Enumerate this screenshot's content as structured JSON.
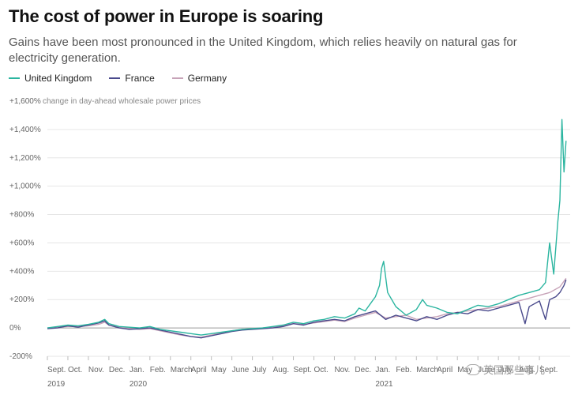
{
  "header": {
    "title": "The cost of power in Europe is soaring",
    "subtitle": "Gains have been most pronounced in the United Kingdom, which relies heavily on natural gas for electricity generation."
  },
  "watermark": {
    "text": "英国那些事儿"
  },
  "chart_data": {
    "type": "line",
    "title": "The cost of power in Europe is soaring",
    "ylabel": "change in day-ahead wholesale power prices",
    "ylim": [
      -200,
      1600
    ],
    "yticks": [
      -200,
      0,
      200,
      400,
      600,
      800,
      1000,
      1200,
      1400,
      1600
    ],
    "ytick_labels": [
      "-200%",
      "0%",
      "+200%",
      "+400%",
      "+600%",
      "+800%",
      "+1,000%",
      "+1,200%",
      "+1,400%",
      "+1,600%"
    ],
    "xlim": [
      0,
      25.5
    ],
    "x_months": [
      "Sept.",
      "Oct.",
      "Nov.",
      "Dec.",
      "Jan.",
      "Feb.",
      "March",
      "April",
      "May",
      "June",
      "July",
      "Aug.",
      "Sept.",
      "Oct.",
      "Nov.",
      "Dec.",
      "Jan.",
      "Feb.",
      "March",
      "April",
      "May",
      "June",
      "July",
      "Aug.",
      "Sept."
    ],
    "x_years": [
      {
        "label": "2019",
        "month_index": 0
      },
      {
        "label": "2020",
        "month_index": 4
      },
      {
        "label": "2021",
        "month_index": 16
      }
    ],
    "colors": {
      "United Kingdom": "#2bb5a0",
      "France": "#4a4a8c",
      "Germany": "#c7a3b8"
    },
    "series": [
      {
        "name": "United Kingdom",
        "x": [
          0,
          0.5,
          1,
          1.5,
          2,
          2.5,
          2.8,
          3,
          3.5,
          4,
          4.5,
          5,
          5.5,
          6,
          6.5,
          7,
          7.5,
          8,
          8.5,
          9,
          9.5,
          10,
          10.5,
          11,
          11.5,
          12,
          12.5,
          13,
          13.5,
          14,
          14.5,
          15,
          15.2,
          15.5,
          15.8,
          16,
          16.2,
          16.3,
          16.4,
          16.6,
          17,
          17.5,
          18,
          18.3,
          18.5,
          19,
          19.5,
          20,
          20.5,
          21,
          21.5,
          22,
          22.5,
          23,
          23.5,
          24,
          24.3,
          24.5,
          24.7,
          24.9,
          25,
          25.1,
          25.2,
          25.3
        ],
        "values": [
          0,
          10,
          20,
          15,
          25,
          40,
          60,
          30,
          10,
          5,
          0,
          10,
          -10,
          -20,
          -30,
          -40,
          -50,
          -40,
          -30,
          -20,
          -10,
          -5,
          0,
          10,
          20,
          40,
          30,
          50,
          60,
          80,
          70,
          100,
          140,
          120,
          180,
          220,
          300,
          420,
          470,
          250,
          150,
          90,
          130,
          200,
          160,
          140,
          110,
          100,
          130,
          160,
          150,
          170,
          200,
          230,
          250,
          270,
          320,
          600,
          380,
          750,
          900,
          1470,
          1100,
          1320
        ]
      },
      {
        "name": "France",
        "x": [
          0,
          0.5,
          1,
          1.5,
          2,
          2.5,
          2.8,
          3,
          3.5,
          4,
          4.5,
          5,
          5.5,
          6,
          6.5,
          7,
          7.5,
          8,
          8.5,
          9,
          9.5,
          10,
          10.5,
          11,
          11.5,
          12,
          12.5,
          13,
          13.5,
          14,
          14.5,
          15,
          15.5,
          16,
          16.5,
          17,
          17.5,
          18,
          18.5,
          19,
          19.5,
          20,
          20.5,
          21,
          21.5,
          22,
          22.5,
          23,
          23.3,
          23.5,
          24,
          24.3,
          24.5,
          24.8,
          25,
          25.2,
          25.3
        ],
        "values": [
          -5,
          0,
          15,
          5,
          20,
          35,
          50,
          20,
          0,
          -10,
          -5,
          0,
          -15,
          -30,
          -45,
          -60,
          -70,
          -55,
          -40,
          -25,
          -15,
          -10,
          -5,
          0,
          10,
          30,
          20,
          40,
          50,
          60,
          50,
          80,
          100,
          120,
          60,
          90,
          70,
          50,
          80,
          60,
          90,
          110,
          100,
          130,
          120,
          140,
          160,
          180,
          30,
          150,
          190,
          60,
          200,
          220,
          250,
          300,
          340
        ]
      },
      {
        "name": "Germany",
        "x": [
          0,
          0.5,
          1,
          1.5,
          2,
          2.5,
          2.8,
          3,
          3.5,
          4,
          4.5,
          5,
          5.5,
          6,
          6.5,
          7,
          7.5,
          8,
          8.5,
          9,
          9.5,
          10,
          10.5,
          11,
          11.5,
          12,
          12.5,
          13,
          13.5,
          14,
          14.5,
          15,
          15.5,
          16,
          16.5,
          17,
          17.5,
          18,
          18.5,
          19,
          19.5,
          20,
          20.5,
          21,
          21.5,
          22,
          22.5,
          23,
          23.5,
          24,
          24.5,
          25,
          25.2,
          25.3
        ],
        "values": [
          0,
          5,
          10,
          10,
          15,
          25,
          40,
          20,
          5,
          -5,
          -10,
          -5,
          -20,
          -35,
          -50,
          -60,
          -65,
          -50,
          -35,
          -20,
          -10,
          -5,
          0,
          5,
          15,
          30,
          25,
          35,
          45,
          55,
          45,
          70,
          90,
          110,
          70,
          80,
          90,
          60,
          70,
          80,
          100,
          110,
          120,
          130,
          140,
          150,
          170,
          190,
          210,
          230,
          250,
          290,
          330,
          350
        ]
      }
    ]
  }
}
